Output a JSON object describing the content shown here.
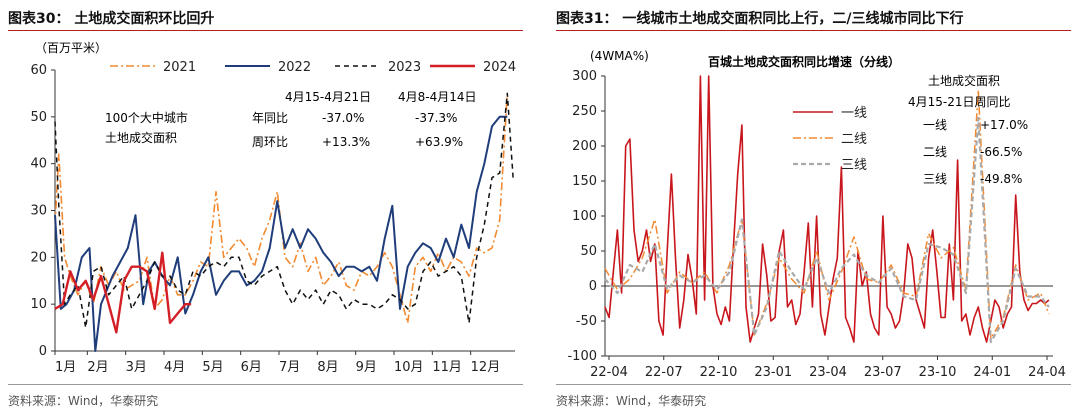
{
  "left": {
    "title": "图表30：  土地成交面积环比回升",
    "source": "资料来源：Wind，华泰研究",
    "chart_data": {
      "type": "line",
      "ylabel": "（百万平米）",
      "ylim": [
        0,
        60
      ],
      "yticks": [
        "0",
        "10",
        "20",
        "30",
        "40",
        "50",
        "60"
      ],
      "x_ticks": [
        "1月",
        "2月",
        "3月",
        "4月",
        "5月",
        "6月",
        "7月",
        "8月",
        "9月",
        "10月",
        "11月",
        "12月"
      ],
      "grid": false,
      "legend_position": "top",
      "x_domain": [
        1,
        13
      ],
      "series": [
        {
          "name": "2021",
          "color": "#f28a32",
          "dash": "8,3,2,3",
          "width": 1.6,
          "x": [
            1,
            1.1,
            1.25,
            1.4,
            1.6,
            1.8,
            2.0,
            2.2,
            2.4,
            2.6,
            2.8,
            3.0,
            3.2,
            3.4,
            3.6,
            3.8,
            4.0,
            4.2,
            4.4,
            4.6,
            4.8,
            5.0,
            5.2,
            5.4,
            5.6,
            5.8,
            6.0,
            6.2,
            6.4,
            6.6,
            6.8,
            7.0,
            7.2,
            7.4,
            7.6,
            7.8,
            8.0,
            8.2,
            8.4,
            8.6,
            8.8,
            9.0,
            9.2,
            9.4,
            9.6,
            9.8,
            10.0,
            10.2,
            10.4,
            10.6,
            10.8,
            11.0,
            11.2,
            11.4,
            11.6,
            11.8,
            12.0,
            12.2,
            12.4,
            12.6,
            12.8
          ],
          "y": [
            27,
            42,
            20,
            16,
            12,
            15,
            10,
            18,
            14,
            17,
            13,
            14,
            15,
            20,
            9,
            11,
            16,
            12,
            12,
            15,
            19,
            18,
            34,
            20,
            22,
            24,
            22,
            18,
            24,
            28,
            34,
            20,
            18,
            23,
            17,
            20,
            14,
            16,
            19,
            14,
            13,
            17,
            16,
            18,
            21,
            18,
            12,
            6,
            18,
            20,
            17,
            21,
            17,
            20,
            19,
            16,
            22,
            21,
            22,
            28,
            55
          ]
        },
        {
          "name": "2022",
          "color": "#1f3d7a",
          "dash": "",
          "width": 2,
          "x": [
            1,
            1.15,
            1.3,
            1.5,
            1.7,
            1.9,
            2.05,
            2.2,
            2.35,
            2.5,
            2.7,
            2.9,
            3.1,
            3.3,
            3.45,
            3.6,
            3.8,
            4.0,
            4.2,
            4.4,
            4.6,
            4.8,
            5.0,
            5.2,
            5.4,
            5.6,
            5.8,
            6.0,
            6.2,
            6.4,
            6.6,
            6.8,
            7.0,
            7.2,
            7.4,
            7.6,
            7.8,
            8.0,
            8.2,
            8.4,
            8.6,
            8.8,
            9.0,
            9.2,
            9.4,
            9.6,
            9.8,
            10.0,
            10.2,
            10.4,
            10.6,
            10.8,
            11.0,
            11.2,
            11.4,
            11.6,
            11.8,
            12.0,
            12.2,
            12.4,
            12.6,
            12.8
          ],
          "y": [
            29,
            9,
            10,
            13,
            20,
            22,
            0,
            10,
            13,
            16,
            19,
            22,
            29,
            10,
            17,
            19,
            16,
            14,
            20,
            8,
            12,
            17,
            20,
            12,
            15,
            17,
            17,
            14,
            15,
            17,
            22,
            32,
            22,
            26,
            22,
            26,
            24,
            21,
            19,
            16,
            18,
            18,
            17,
            18,
            15,
            24,
            31,
            9,
            18,
            21,
            23,
            22,
            19,
            24,
            20,
            27,
            22,
            34,
            40,
            48,
            50,
            50
          ]
        },
        {
          "name": "2023",
          "color": "#111111",
          "dash": "5,4",
          "width": 1.5,
          "x": [
            1,
            1.1,
            1.25,
            1.4,
            1.6,
            1.8,
            2.0,
            2.2,
            2.4,
            2.6,
            2.8,
            3.0,
            3.2,
            3.4,
            3.6,
            3.8,
            4.0,
            4.2,
            4.4,
            4.6,
            4.8,
            5.0,
            5.2,
            5.4,
            5.6,
            5.8,
            6.0,
            6.2,
            6.4,
            6.6,
            6.8,
            7.0,
            7.2,
            7.4,
            7.6,
            7.8,
            8.0,
            8.2,
            8.4,
            8.6,
            8.8,
            9.0,
            9.2,
            9.4,
            9.6,
            9.8,
            10.0,
            10.2,
            10.4,
            10.6,
            10.8,
            11.0,
            11.2,
            11.4,
            11.6,
            11.8,
            12.0,
            12.2,
            12.4,
            12.6,
            12.8,
            12.95
          ],
          "y": [
            49,
            31,
            10,
            12,
            14,
            5,
            17,
            18,
            12,
            14,
            16,
            9,
            12,
            15,
            19,
            16,
            16,
            13,
            12,
            17,
            16,
            18,
            19,
            18,
            20,
            20,
            15,
            14,
            16,
            17,
            18,
            13,
            10,
            13,
            11,
            13,
            10,
            13,
            12,
            9,
            11,
            10,
            10,
            9,
            10,
            12,
            11,
            9,
            10,
            17,
            19,
            16,
            17,
            18,
            16,
            6,
            20,
            27,
            37,
            38,
            55,
            37
          ]
        },
        {
          "name": "2024",
          "color": "#d41f26",
          "dash": "",
          "width": 2.4,
          "x": [
            1,
            1.2,
            1.4,
            1.6,
            1.8,
            2.0,
            2.2,
            2.4,
            2.6,
            2.8,
            3.0,
            3.2,
            3.4,
            3.6,
            3.8,
            4.0,
            4.2,
            4.4,
            4.55
          ],
          "y": [
            9,
            10,
            17,
            13,
            15,
            11,
            16,
            10,
            4,
            15,
            18,
            18,
            17,
            9,
            21,
            6,
            8,
            10,
            10
          ]
        }
      ]
    },
    "annotation": {
      "label_lines": [
        "100个大中城市",
        "土地成交面积"
      ],
      "col1_header": "4月15-4月21日",
      "col2_header": "4月8-4月14日",
      "rows": [
        {
          "name": "年同比",
          "v1": "-37.0%",
          "v2": "-37.3%"
        },
        {
          "name": "周环比",
          "v1": "+13.3%",
          "v2": "+63.9%"
        }
      ]
    }
  },
  "right": {
    "title": "图表31：  一线城市土地成交面积同比上行，二/三线城市同比下行",
    "source": "资料来源：Wind，华泰研究",
    "chart_data": {
      "type": "line",
      "title": "百城土地成交面积同比增速（分线）",
      "ylabel": "(4WMA%)",
      "ylim": [
        -100,
        300
      ],
      "yticks": [
        "-100",
        "-50",
        "0",
        "50",
        "100",
        "150",
        "200",
        "250",
        "300"
      ],
      "x_ticks": [
        "22-04",
        "22-07",
        "22-10",
        "23-01",
        "23-04",
        "23-07",
        "23-10",
        "24-01",
        "24-04"
      ],
      "grid": false,
      "legend_position": "left",
      "x_domain": [
        0,
        108
      ],
      "series": [
        {
          "name": "一线",
          "color": "#c8161d",
          "dash": "",
          "width": 1.6,
          "x": [
            0,
            1,
            2,
            3,
            4,
            5,
            6,
            7,
            8,
            9,
            10,
            11,
            12,
            13,
            14,
            15,
            16,
            17,
            18,
            19,
            20,
            21,
            22,
            23,
            24,
            25,
            26,
            27,
            28,
            29,
            30,
            31,
            32,
            33,
            34,
            35,
            36,
            37,
            38,
            39,
            40,
            41,
            42,
            43,
            44,
            45,
            46,
            47,
            48,
            49,
            50,
            51,
            52,
            53,
            54,
            55,
            56,
            57,
            58,
            59,
            60,
            61,
            62,
            63,
            64,
            65,
            66,
            67,
            68,
            69,
            70,
            71,
            72,
            73,
            74,
            75,
            76,
            77,
            78,
            79,
            80,
            81,
            82,
            83,
            84,
            85,
            86,
            87,
            88,
            89,
            90,
            91,
            92,
            93,
            94,
            95,
            96,
            97,
            98,
            99,
            100,
            101,
            102,
            103,
            104,
            105,
            106,
            107
          ],
          "y": [
            -30,
            -45,
            20,
            80,
            -10,
            200,
            210,
            80,
            35,
            50,
            80,
            35,
            60,
            -50,
            -70,
            50,
            160,
            40,
            -60,
            -20,
            45,
            10,
            -40,
            400,
            -20,
            400,
            0,
            -40,
            -55,
            -30,
            -50,
            60,
            160,
            230,
            -30,
            -80,
            -60,
            -40,
            60,
            15,
            -50,
            -45,
            50,
            80,
            -30,
            -20,
            -55,
            -40,
            20,
            90,
            -30,
            100,
            -40,
            -70,
            -30,
            10,
            40,
            170,
            -45,
            -60,
            -80,
            50,
            0,
            20,
            -40,
            -60,
            -70,
            100,
            -30,
            -40,
            -60,
            -50,
            -10,
            60,
            40,
            -20,
            -40,
            -60,
            40,
            80,
            20,
            -45,
            -45,
            60,
            -20,
            180,
            -50,
            -40,
            -70,
            -45,
            -30,
            -60,
            -80,
            -50,
            -20,
            -30,
            -60,
            -40,
            -30,
            130,
            20,
            -20,
            -35,
            -25,
            -25,
            -20,
            -25,
            -20
          ]
        },
        {
          "name": "二线",
          "color": "#f28a32",
          "dash": "8,3,2,3",
          "width": 1.5,
          "x": [
            0,
            3,
            6,
            9,
            12,
            15,
            18,
            21,
            24,
            27,
            30,
            33,
            36,
            39,
            42,
            45,
            48,
            51,
            54,
            57,
            60,
            63,
            66,
            69,
            72,
            75,
            78,
            81,
            84,
            87,
            90,
            93,
            96,
            99,
            102,
            105,
            107
          ],
          "y": [
            25,
            -5,
            10,
            40,
            95,
            -10,
            20,
            5,
            20,
            -10,
            30,
            95,
            -70,
            -25,
            40,
            10,
            -10,
            50,
            -20,
            20,
            70,
            10,
            5,
            30,
            -10,
            -15,
            75,
            40,
            55,
            -5,
            280,
            -75,
            -45,
            30,
            -20,
            -10,
            -40
          ]
        },
        {
          "name": "三线",
          "color": "#aaaaaa",
          "dash": "5,3",
          "width": 2.2,
          "x": [
            0,
            3,
            6,
            9,
            12,
            15,
            18,
            21,
            24,
            27,
            30,
            33,
            36,
            39,
            42,
            45,
            48,
            51,
            54,
            57,
            60,
            63,
            66,
            69,
            72,
            75,
            78,
            81,
            84,
            87,
            90,
            93,
            96,
            99,
            102,
            105,
            107
          ],
          "y": [
            10,
            -10,
            30,
            20,
            60,
            -5,
            15,
            5,
            15,
            -5,
            20,
            95,
            -70,
            -30,
            50,
            20,
            -5,
            40,
            -10,
            25,
            45,
            15,
            5,
            25,
            -15,
            -20,
            60,
            55,
            45,
            -10,
            240,
            -80,
            -50,
            25,
            -15,
            -15,
            -30
          ]
        }
      ]
    },
    "annotation": {
      "header_lines": [
        "土地成交面积",
        "4月15-21日周同比"
      ],
      "rows": [
        {
          "name": "一线",
          "v": "+17.0%"
        },
        {
          "name": "二线",
          "v": "-66.5%"
        },
        {
          "name": "三线",
          "v": "-49.8%"
        }
      ]
    }
  }
}
